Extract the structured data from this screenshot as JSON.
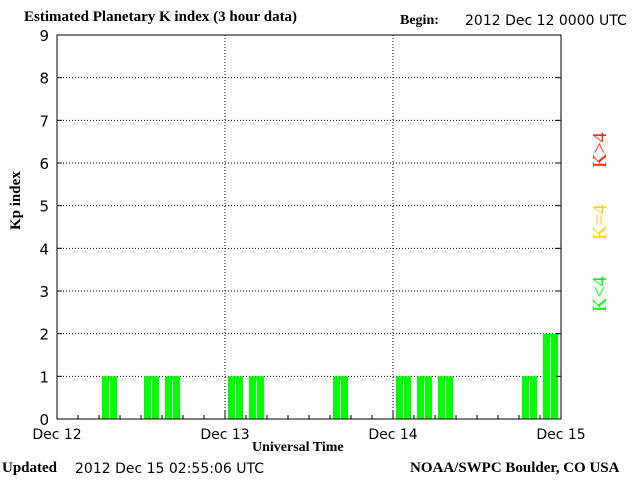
{
  "header": {
    "title": "Estimated Planetary K index (3 hour data)",
    "begin_label": "Begin:",
    "begin_value": "2012 Dec 12 0000 UTC"
  },
  "footer": {
    "updated_label": "Updated",
    "updated_value": "2012 Dec 15 02:55:06 UTC",
    "credit": "NOAA/SWPC Boulder, CO USA"
  },
  "legend": {
    "high": {
      "label": "K>4",
      "color": "#ff2a00"
    },
    "eq": {
      "label": "K=4",
      "color": "#ffd000"
    },
    "low": {
      "label": "K<4",
      "color": "#00ff00"
    }
  },
  "chart_data": {
    "type": "bar",
    "title": "Estimated Planetary K index (3 hour data)",
    "xlabel": "Universal Time",
    "ylabel": "Kp index",
    "ylim": [
      0,
      9
    ],
    "yticks": [
      "0",
      "1",
      "2",
      "3",
      "4",
      "5",
      "6",
      "7",
      "8",
      "9"
    ],
    "xticks": [
      "Dec 12",
      "Dec 13",
      "Dec 14",
      "Dec 15"
    ],
    "grid": true,
    "interval": "3 hour",
    "start": "2012 Dec 12 0000 UTC",
    "bar_color": "#00ff00",
    "categories": [
      "Dec 12 00-03",
      "Dec 12 03-06",
      "Dec 12 06-09",
      "Dec 12 09-12",
      "Dec 12 12-15",
      "Dec 12 15-18",
      "Dec 12 18-21",
      "Dec 12 21-24",
      "Dec 13 00-03",
      "Dec 13 03-06",
      "Dec 13 06-09",
      "Dec 13 09-12",
      "Dec 13 12-15",
      "Dec 13 15-18",
      "Dec 13 18-21",
      "Dec 13 21-24",
      "Dec 14 00-03",
      "Dec 14 03-06",
      "Dec 14 06-09",
      "Dec 14 09-12",
      "Dec 14 12-15",
      "Dec 14 15-18",
      "Dec 14 18-21",
      "Dec 14 21-24"
    ],
    "values": [
      0,
      0,
      1,
      0,
      1,
      1,
      0,
      0,
      1,
      1,
      0,
      0,
      0,
      1,
      0,
      0,
      1,
      1,
      1,
      0,
      0,
      0,
      1,
      2
    ]
  }
}
